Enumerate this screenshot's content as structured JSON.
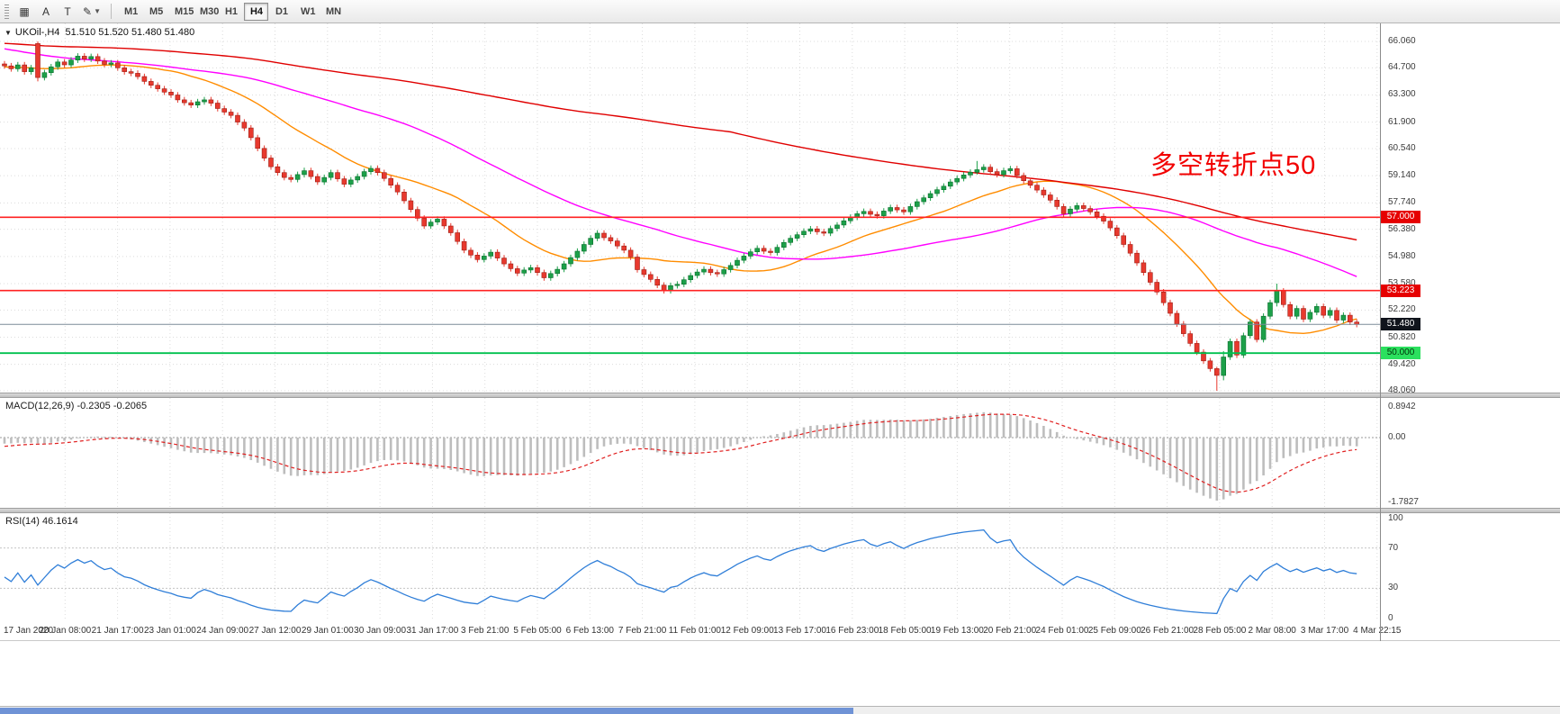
{
  "toolbar": {
    "a_label": "A",
    "t_label": "T",
    "timeframes": [
      "M1",
      "M5",
      "M15",
      "M30",
      "H1",
      "H4",
      "D1",
      "W1",
      "MN"
    ],
    "active_timeframe": "H4"
  },
  "chart": {
    "info_line": "UKOil-,H4  51.510 51.520 51.480 51.480",
    "symbol": "UKOil-",
    "period": "H4",
    "annotation": {
      "text": "多空转折点50",
      "color": "#f20000"
    },
    "price_axis_labels": [
      "66.060",
      "64.700",
      "63.300",
      "61.900",
      "60.540",
      "59.140",
      "57.740",
      "56.380",
      "54.980",
      "53.580",
      "52.220",
      "50.820",
      "49.420",
      "48.060"
    ],
    "hlines": [
      {
        "price": 57.0,
        "label": "57.000",
        "color": "#ff2222",
        "width": 1.6,
        "tag_bg": "#e60000",
        "tag_fg": "#ffffff"
      },
      {
        "price": 53.223,
        "label": "53.223",
        "color": "#ff2222",
        "width": 1.6,
        "tag_bg": "#e60000",
        "tag_fg": "#ffffff"
      },
      {
        "price": 51.48,
        "label": "51.480",
        "color": "#7d8b99",
        "width": 1.0,
        "tag_bg": "#10141c",
        "tag_fg": "#ffffff"
      },
      {
        "price": 50.0,
        "label": "50.000",
        "color": "#00c14e",
        "width": 1.8,
        "tag_bg": "#2be05e",
        "tag_fg": "#00320a"
      }
    ]
  },
  "macd": {
    "label": "MACD(12,26,9) -0.2305 -0.2065",
    "axis_labels": [
      "0.8942",
      "0.00",
      "-1.7827"
    ]
  },
  "rsi": {
    "label": "RSI(14) 46.1614",
    "axis_labels": [
      "100",
      "70",
      "30",
      "0"
    ]
  },
  "chart_data": {
    "type": "candlestick",
    "symbol": "UKOil-",
    "timeframe": "H4",
    "current_ohlc": {
      "open": 51.51,
      "high": 51.52,
      "low": 51.48,
      "close": 51.48
    },
    "horizontal_levels": [
      57.0,
      53.223,
      51.48,
      50.0
    ],
    "price_axis_top": 66.06,
    "price_axis_bottom": 48.06,
    "open_seed": 64.9,
    "default_wick": 0.15,
    "up_color": "#1CA049",
    "up_border": "#0b6e2d",
    "down_color": "#E8392E",
    "down_border": "#9c1f16",
    "closes": [
      64.8,
      64.65,
      64.85,
      64.5,
      64.7,
      64.2,
      64.45,
      64.75,
      65.0,
      64.85,
      65.1,
      65.3,
      65.15,
      65.28,
      65.05,
      64.88,
      64.95,
      64.7,
      64.5,
      64.42,
      64.25,
      64.0,
      63.8,
      63.62,
      63.45,
      63.3,
      63.05,
      62.9,
      62.78,
      62.95,
      63.05,
      62.88,
      62.6,
      62.42,
      62.25,
      61.9,
      61.6,
      61.1,
      60.55,
      60.05,
      59.6,
      59.3,
      59.05,
      58.95,
      59.2,
      59.4,
      59.1,
      58.82,
      59.05,
      59.3,
      58.98,
      58.7,
      58.92,
      59.1,
      59.35,
      59.52,
      59.3,
      59.0,
      58.65,
      58.3,
      57.85,
      57.4,
      56.95,
      56.55,
      56.75,
      56.9,
      56.55,
      56.2,
      55.75,
      55.3,
      55.05,
      54.82,
      55.0,
      55.2,
      54.9,
      54.6,
      54.35,
      54.12,
      54.28,
      54.4,
      54.15,
      53.88,
      54.1,
      54.32,
      54.6,
      54.92,
      55.25,
      55.6,
      55.92,
      56.18,
      55.95,
      55.78,
      55.52,
      55.3,
      54.95,
      54.3,
      54.05,
      53.8,
      53.5,
      53.22,
      53.48,
      53.55,
      53.78,
      54.0,
      54.18,
      54.32,
      54.15,
      54.08,
      54.3,
      54.52,
      54.78,
      55.0,
      55.22,
      55.4,
      55.25,
      55.18,
      55.45,
      55.7,
      55.92,
      56.1,
      56.28,
      56.4,
      56.25,
      56.18,
      56.42,
      56.6,
      56.82,
      57.0,
      57.18,
      57.3,
      57.15,
      57.08,
      57.32,
      57.5,
      57.38,
      57.28,
      57.55,
      57.8,
      58.0,
      58.22,
      58.42,
      58.6,
      58.82,
      59.0,
      59.18,
      59.32,
      59.45,
      59.58,
      59.35,
      59.2,
      59.4,
      59.5,
      59.15,
      58.88,
      58.65,
      58.4,
      58.15,
      57.88,
      57.55,
      57.18,
      57.42,
      57.6,
      57.45,
      57.28,
      57.05,
      56.8,
      56.45,
      56.05,
      55.6,
      55.15,
      54.65,
      54.15,
      53.65,
      53.15,
      52.6,
      52.05,
      51.5,
      51.0,
      50.5,
      50.05,
      49.6,
      49.2,
      48.85,
      49.8,
      50.6,
      49.9,
      50.9,
      51.6,
      50.7,
      51.9,
      52.6,
      53.2,
      52.5,
      51.9,
      52.3,
      51.75,
      52.1,
      52.4,
      51.95,
      52.2,
      51.7,
      51.95,
      51.6,
      51.48
    ],
    "prehistory_closes": [
      68.8,
      68.6,
      68.7,
      68.4,
      68.2,
      68.3,
      68.0,
      67.8,
      67.9,
      67.6,
      67.4,
      67.5,
      67.2,
      67.0,
      67.1,
      66.9,
      66.7,
      66.8,
      66.5,
      66.3,
      66.4,
      66.2,
      66.0,
      66.1,
      65.9,
      65.8,
      65.9,
      65.7,
      65.6,
      65.7,
      65.5,
      65.4,
      65.5,
      65.3,
      65.2,
      65.3,
      65.2,
      65.1,
      65.2,
      65.0,
      64.9,
      65.0,
      64.9,
      64.8,
      64.9,
      64.8,
      64.7,
      64.8,
      64.7,
      64.6,
      64.7,
      64.6,
      64.5,
      64.6,
      64.6,
      64.7,
      64.7,
      64.8,
      64.8,
      64.9
    ],
    "special_candles": {
      "5": [
        65.95,
        66.06,
        64.0,
        64.2
      ],
      "146": [
        59.32,
        59.9,
        59.2,
        59.45
      ],
      "182": [
        49.2,
        49.3,
        48.06,
        48.85
      ],
      "183": [
        48.85,
        50.1,
        48.6,
        49.8
      ],
      "191": [
        52.6,
        53.58,
        52.4,
        53.2
      ]
    },
    "moving_averages": [
      {
        "period": 20,
        "color": "#FF8C00"
      },
      {
        "period": 55,
        "color": "#FF00FF"
      },
      {
        "period": 170,
        "color": "#E00000"
      }
    ],
    "macd": {
      "fast": 12,
      "slow": 26,
      "signal": 9,
      "current_macd": -0.2305,
      "current_signal": -0.2065,
      "axis_max": 0.8942,
      "axis_min": -1.7827
    },
    "rsi": {
      "period": 14,
      "current": 46.1614,
      "levels": [
        70,
        30
      ]
    },
    "x_labels": [
      "17 Jan 2020",
      "20 Jan 08:00",
      "21 Jan 17:00",
      "23 Jan 01:00",
      "24 Jan 09:00",
      "27 Jan 12:00",
      "29 Jan 01:00",
      "30 Jan 09:00",
      "31 Jan 17:00",
      "3 Feb 21:00",
      "5 Feb 05:00",
      "6 Feb 13:00",
      "7 Feb 21:00",
      "11 Feb 01:00",
      "12 Feb 09:00",
      "13 Feb 17:00",
      "16 Feb 23:00",
      "18 Feb 05:00",
      "19 Feb 13:00",
      "20 Feb 21:00",
      "24 Feb 01:00",
      "25 Feb 09:00",
      "26 Feb 21:00",
      "28 Feb 05:00",
      "2 Mar 08:00",
      "3 Mar 17:00",
      "4 Mar 22:15"
    ]
  }
}
